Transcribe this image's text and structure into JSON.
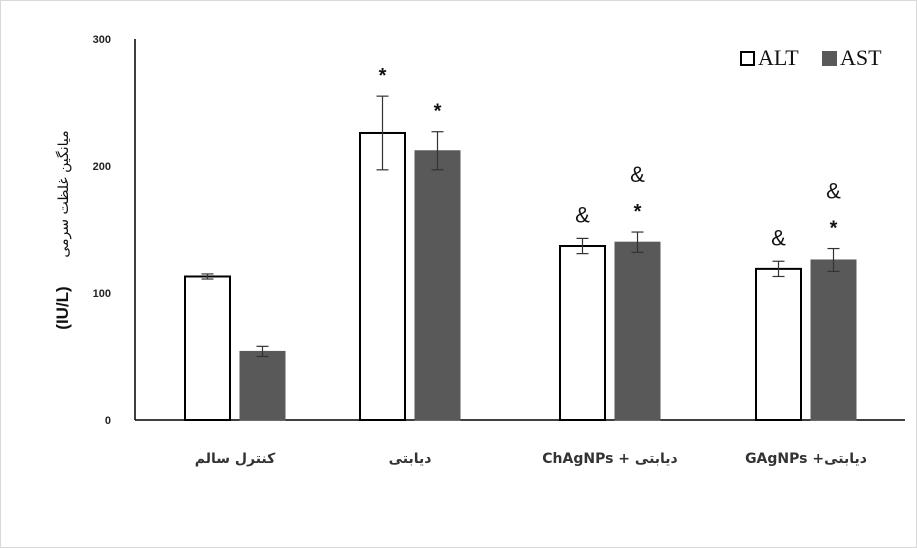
{
  "chart_data": {
    "type": "bar",
    "categories": [
      "کنترل سالم",
      "دیابتی",
      "دیابتی + ChAgNPs",
      "دیابتی+ GAgNPs"
    ],
    "series": [
      {
        "name": "ALT",
        "color": "#ffffff",
        "stroke": "#000000",
        "values": [
          113,
          226,
          137,
          119
        ],
        "errors": [
          2,
          29,
          6,
          6
        ]
      },
      {
        "name": "AST",
        "color": "#595959",
        "stroke": "#595959",
        "values": [
          54,
          212,
          140,
          126
        ],
        "errors": [
          4,
          15,
          8,
          9
        ]
      }
    ],
    "annotations": [
      {
        "category": 1,
        "series": 0,
        "labels": [
          "*"
        ]
      },
      {
        "category": 1,
        "series": 1,
        "labels": [
          "*"
        ]
      },
      {
        "category": 2,
        "series": 0,
        "labels": [
          "&"
        ]
      },
      {
        "category": 2,
        "series": 1,
        "labels": [
          "&",
          "*"
        ]
      },
      {
        "category": 3,
        "series": 0,
        "labels": [
          "&"
        ]
      },
      {
        "category": 3,
        "series": 1,
        "labels": [
          "&",
          "*"
        ]
      }
    ],
    "ylabel": "میانگین غلظت سرمی",
    "ylabel_unit": "(IU/L)",
    "ylim": [
      0,
      300
    ],
    "yticks": [
      "0",
      "100",
      "200",
      "300"
    ],
    "grid": false,
    "legend_position": "top-right"
  }
}
